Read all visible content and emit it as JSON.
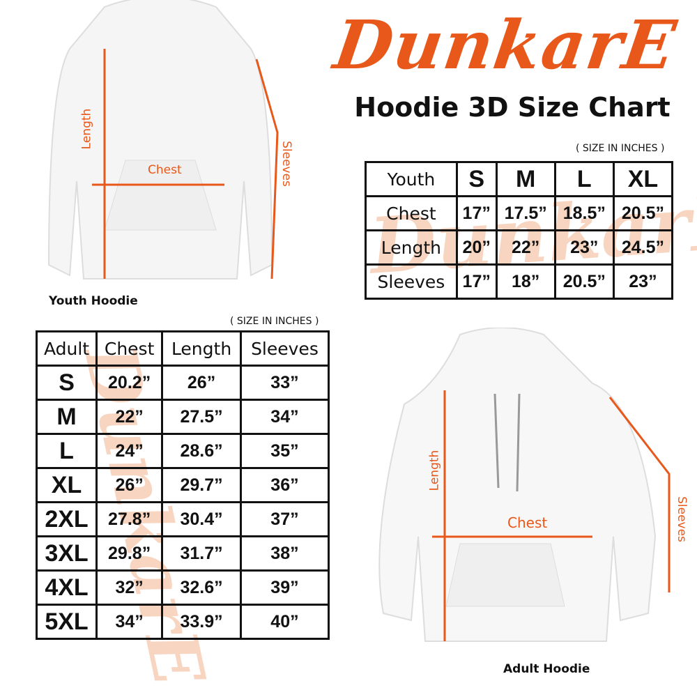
{
  "brand": {
    "logo_text": "DunkarE",
    "color": "#e8581a"
  },
  "title": "Hoodie 3D Size Chart",
  "unit_note": "( SIZE IN INCHES )",
  "youth": {
    "caption": "Youth Hoodie",
    "labels": {
      "length": "Length",
      "chest": "Chest",
      "sleeves": "Sleeves"
    },
    "table": {
      "header": [
        "Youth",
        "S",
        "M",
        "L",
        "XL"
      ],
      "rows": [
        [
          "Chest",
          "17”",
          "17.5”",
          "18.5”",
          "20.5”"
        ],
        [
          "Length",
          "20”",
          "22”",
          "23”",
          "24.5”"
        ],
        [
          "Sleeves",
          "17”",
          "18”",
          "20.5”",
          "23”"
        ]
      ]
    }
  },
  "adult": {
    "caption": "Adult Hoodie",
    "labels": {
      "length": "Length",
      "chest": "Chest",
      "sleeves": "Sleeves"
    },
    "table": {
      "header": [
        "Adult",
        "Chest",
        "Length",
        "Sleeves"
      ],
      "rows": [
        [
          "S",
          "20.2”",
          "26”",
          "33”"
        ],
        [
          "M",
          "22”",
          "27.5”",
          "34”"
        ],
        [
          "L",
          "24”",
          "28.6”",
          "35”"
        ],
        [
          "XL",
          "26”",
          "29.7”",
          "36”"
        ],
        [
          "2XL",
          "27.8”",
          "30.4”",
          "37”"
        ],
        [
          "3XL",
          "29.8”",
          "31.7”",
          "38”"
        ],
        [
          "4XL",
          "32”",
          "32.6”",
          "39”"
        ],
        [
          "5XL",
          "34”",
          "33.9”",
          "40”"
        ]
      ]
    }
  }
}
